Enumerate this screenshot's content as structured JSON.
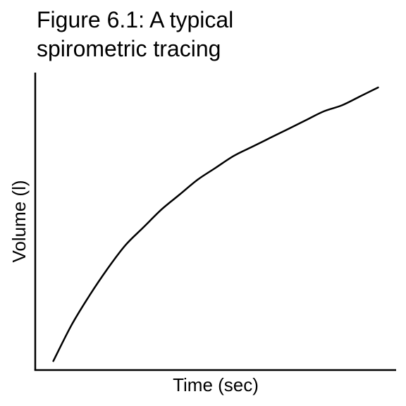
{
  "chart_data": {
    "type": "line",
    "title": "Figure 6.1: A typical spirometric tracing",
    "title_lines": [
      "Figure 6.1: A typical",
      "spirometric tracing"
    ],
    "xlabel": "Time (sec)",
    "ylabel": "Volume (l)",
    "xlim": [
      0,
      1
    ],
    "ylim": [
      0,
      1
    ],
    "grid": false,
    "legend": "none",
    "series": [
      {
        "x": [
          0.05,
          0.1,
          0.15,
          0.2,
          0.25,
          0.3,
          0.35,
          0.4,
          0.45,
          0.5,
          0.55,
          0.6,
          0.65,
          0.7,
          0.75,
          0.8,
          0.85,
          0.9,
          0.95
        ],
        "values": [
          0.03,
          0.15,
          0.25,
          0.34,
          0.42,
          0.48,
          0.54,
          0.59,
          0.64,
          0.68,
          0.72,
          0.75,
          0.78,
          0.81,
          0.84,
          0.87,
          0.89,
          0.92,
          0.95
        ],
        "color": "#000000"
      }
    ]
  }
}
